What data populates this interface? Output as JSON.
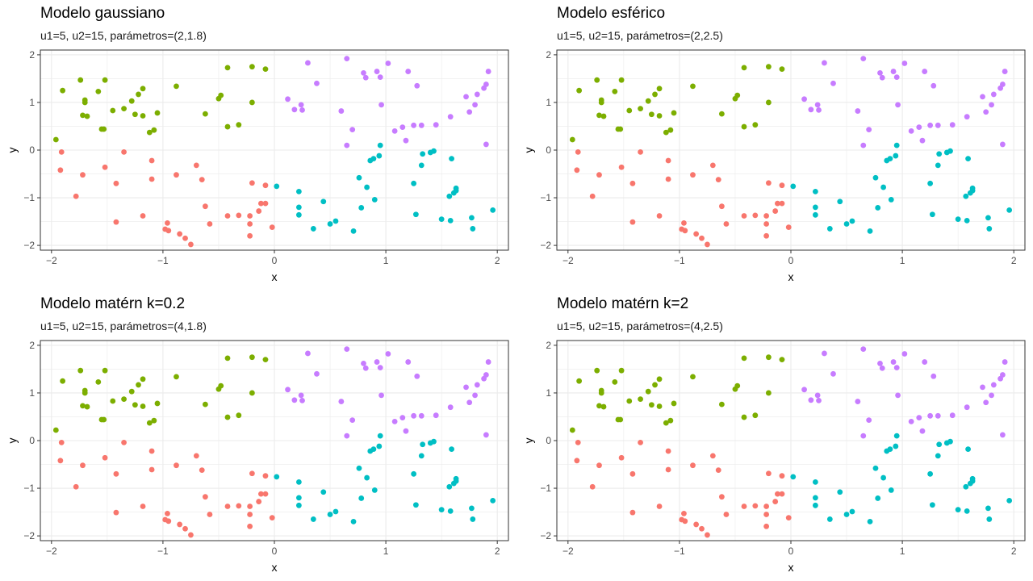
{
  "colors": {
    "cluster1": "#F8766D",
    "cluster2": "#7CAE00",
    "cluster3": "#00BFC4",
    "cluster4": "#C77CFF",
    "grid": "#ebebeb",
    "panel_border": "#333333",
    "tick_text": "#4d4d4d"
  },
  "chart_data": [
    {
      "type": "scatter",
      "title": "Modelo gaussiano",
      "subtitle": "u1=5, u2=15, parámetros=(2,1.8)",
      "xlabel": "x",
      "ylabel": "y",
      "xlim": [
        -2.1,
        2.1
      ],
      "ylim": [
        -2.1,
        2.1
      ],
      "xticks": [
        -2,
        -1,
        0,
        1,
        2
      ],
      "yticks": [
        -2,
        -1,
        0,
        1,
        2
      ],
      "grid": true,
      "legend": "none"
    },
    {
      "type": "scatter",
      "title": "Modelo esférico",
      "subtitle": "u1=5, u2=15, parámetros=(2,2.5)",
      "xlabel": "x",
      "ylabel": "y",
      "xlim": [
        -2.1,
        2.1
      ],
      "ylim": [
        -2.1,
        2.1
      ],
      "xticks": [
        -2,
        -1,
        0,
        1,
        2
      ],
      "yticks": [
        -2,
        -1,
        0,
        1,
        2
      ],
      "grid": true,
      "legend": "none"
    },
    {
      "type": "scatter",
      "title": "Modelo matérn k=0.2",
      "subtitle": "u1=5, u2=15, parámetros=(4,1.8)",
      "xlabel": "x",
      "ylabel": "y",
      "xlim": [
        -2.1,
        2.1
      ],
      "ylim": [
        -2.1,
        2.1
      ],
      "xticks": [
        -2,
        -1,
        0,
        1,
        2
      ],
      "yticks": [
        -2,
        -1,
        0,
        1,
        2
      ],
      "grid": true,
      "legend": "none"
    },
    {
      "type": "scatter",
      "title": "Modelo matérn k=2",
      "subtitle": "u1=5, u2=15, parámetros=(4,2.5)",
      "xlabel": "x",
      "ylabel": "y",
      "xlim": [
        -2.1,
        2.1
      ],
      "ylim": [
        -2.1,
        2.1
      ],
      "xticks": [
        -2,
        -1,
        0,
        1,
        2
      ],
      "yticks": [
        -2,
        -1,
        0,
        1,
        2
      ],
      "grid": true,
      "legend": "none"
    }
  ],
  "points": {
    "cluster1": [
      [
        -1.91,
        -0.04
      ],
      [
        -1.92,
        -0.42
      ],
      [
        -1.78,
        -0.97
      ],
      [
        -1.72,
        -0.52
      ],
      [
        -1.52,
        -0.36
      ],
      [
        -1.42,
        -0.7
      ],
      [
        -1.42,
        -1.51
      ],
      [
        -1.35,
        -0.04
      ],
      [
        -1.18,
        -1.38
      ],
      [
        -1.1,
        -0.22
      ],
      [
        -1.1,
        -0.61
      ],
      [
        -0.98,
        -1.66
      ],
      [
        -0.96,
        -1.53
      ],
      [
        -0.95,
        -1.69
      ],
      [
        -0.88,
        -0.52
      ],
      [
        -0.85,
        -1.76
      ],
      [
        -0.8,
        -1.85
      ],
      [
        -0.75,
        -1.98
      ],
      [
        -0.7,
        -0.32
      ],
      [
        -0.65,
        -0.62
      ],
      [
        -0.62,
        -1.18
      ],
      [
        -0.58,
        -1.55
      ],
      [
        -0.42,
        -1.38
      ],
      [
        -0.32,
        -1.37
      ],
      [
        -0.22,
        -1.38
      ],
      [
        -0.22,
        -1.55
      ],
      [
        -0.22,
        -1.8
      ],
      [
        -0.2,
        -0.69
      ],
      [
        -0.14,
        -1.28
      ],
      [
        -0.12,
        -1.12
      ],
      [
        -0.08,
        -0.74
      ],
      [
        -0.08,
        -1.12
      ],
      [
        -0.02,
        -1.62
      ]
    ],
    "cluster2": [
      [
        -1.96,
        0.22
      ],
      [
        -1.9,
        1.25
      ],
      [
        -1.74,
        1.47
      ],
      [
        -1.72,
        0.73
      ],
      [
        -1.7,
        1.05
      ],
      [
        -1.7,
        1.0
      ],
      [
        -1.68,
        0.71
      ],
      [
        -1.58,
        1.23
      ],
      [
        -1.55,
        0.44
      ],
      [
        -1.53,
        0.44
      ],
      [
        -1.52,
        1.47
      ],
      [
        -1.45,
        0.83
      ],
      [
        -1.35,
        0.87
      ],
      [
        -1.28,
        1.03
      ],
      [
        -1.25,
        0.75
      ],
      [
        -1.22,
        1.17
      ],
      [
        -1.18,
        0.72
      ],
      [
        -1.18,
        1.29
      ],
      [
        -1.12,
        0.37
      ],
      [
        -1.08,
        0.42
      ],
      [
        -1.05,
        0.78
      ],
      [
        -0.88,
        1.34
      ],
      [
        -0.62,
        0.76
      ],
      [
        -0.5,
        1.08
      ],
      [
        -0.48,
        1.15
      ],
      [
        -0.42,
        1.73
      ],
      [
        -0.42,
        0.49
      ],
      [
        -0.32,
        0.53
      ],
      [
        -0.2,
        1.75
      ],
      [
        -0.2,
        1.0
      ],
      [
        -0.08,
        1.7
      ]
    ],
    "cluster3": [
      [
        0.02,
        -0.76
      ],
      [
        0.22,
        -0.87
      ],
      [
        0.22,
        -1.2
      ],
      [
        0.22,
        -1.36
      ],
      [
        0.35,
        -1.65
      ],
      [
        0.44,
        -1.08
      ],
      [
        0.5,
        -1.55
      ],
      [
        0.55,
        -1.49
      ],
      [
        0.71,
        -1.7
      ],
      [
        0.76,
        -0.58
      ],
      [
        0.78,
        -1.21
      ],
      [
        0.83,
        -0.78
      ],
      [
        0.86,
        -0.22
      ],
      [
        0.89,
        -0.18
      ],
      [
        0.9,
        -1.04
      ],
      [
        0.94,
        -0.12
      ],
      [
        0.95,
        0.1
      ],
      [
        1.25,
        -0.7
      ],
      [
        1.27,
        -1.35
      ],
      [
        1.32,
        -0.32
      ],
      [
        1.33,
        -0.08
      ],
      [
        1.4,
        -0.05
      ],
      [
        1.43,
        -0.02
      ],
      [
        1.5,
        -1.45
      ],
      [
        1.57,
        -0.97
      ],
      [
        1.58,
        -1.48
      ],
      [
        1.59,
        -0.18
      ],
      [
        1.61,
        -0.9
      ],
      [
        1.63,
        -0.85
      ],
      [
        1.63,
        -0.8
      ],
      [
        1.77,
        -1.42
      ],
      [
        1.78,
        -1.65
      ],
      [
        1.96,
        -1.26
      ]
    ],
    "cluster4": [
      [
        0.12,
        1.07
      ],
      [
        0.18,
        0.85
      ],
      [
        0.24,
        0.95
      ],
      [
        0.25,
        0.84
      ],
      [
        0.3,
        1.83
      ],
      [
        0.38,
        1.4
      ],
      [
        0.6,
        0.82
      ],
      [
        0.65,
        1.92
      ],
      [
        0.65,
        0.1
      ],
      [
        0.7,
        0.43
      ],
      [
        0.8,
        1.62
      ],
      [
        0.82,
        1.52
      ],
      [
        0.92,
        1.65
      ],
      [
        0.95,
        1.53
      ],
      [
        0.96,
        0.95
      ],
      [
        1.02,
        1.82
      ],
      [
        1.08,
        0.4
      ],
      [
        1.15,
        0.48
      ],
      [
        1.18,
        0.2
      ],
      [
        1.2,
        1.65
      ],
      [
        1.25,
        0.52
      ],
      [
        1.28,
        1.35
      ],
      [
        1.32,
        0.52
      ],
      [
        1.45,
        0.53
      ],
      [
        1.58,
        0.7
      ],
      [
        1.72,
        1.12
      ],
      [
        1.75,
        0.8
      ],
      [
        1.8,
        0.95
      ],
      [
        1.82,
        1.17
      ],
      [
        1.88,
        1.3
      ],
      [
        1.9,
        0.12
      ],
      [
        1.9,
        1.38
      ],
      [
        1.92,
        1.65
      ]
    ]
  }
}
